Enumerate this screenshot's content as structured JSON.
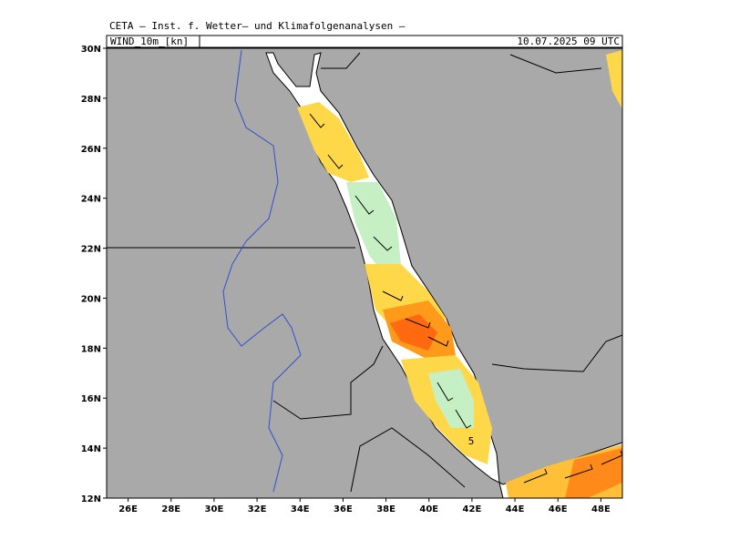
{
  "header": {
    "title": "CETA – Inst. f. Wetter– und Klimafolgenanalysen –",
    "variable": "WIND_10m_[kn]",
    "time": "10.07.2025 09 UTC"
  },
  "map": {
    "lon_range": [
      25,
      49
    ],
    "lat_range": [
      12,
      30
    ],
    "lon_ticks": [
      {
        "value": 26,
        "label": "26E"
      },
      {
        "value": 28,
        "label": "28E"
      },
      {
        "value": 30,
        "label": "30E"
      },
      {
        "value": 32,
        "label": "32E"
      },
      {
        "value": 34,
        "label": "34E"
      },
      {
        "value": 36,
        "label": "36E"
      },
      {
        "value": 38,
        "label": "38E"
      },
      {
        "value": 40,
        "label": "40E"
      },
      {
        "value": 42,
        "label": "42E"
      },
      {
        "value": 44,
        "label": "44E"
      },
      {
        "value": 46,
        "label": "46E"
      },
      {
        "value": 48,
        "label": "48E"
      }
    ],
    "lat_ticks": [
      {
        "value": 12,
        "label": "12N"
      },
      {
        "value": 14,
        "label": "14N"
      },
      {
        "value": 16,
        "label": "16N"
      },
      {
        "value": 18,
        "label": "18N"
      },
      {
        "value": 20,
        "label": "20N"
      },
      {
        "value": 22,
        "label": "22N"
      },
      {
        "value": 24,
        "label": "24N"
      },
      {
        "value": 26,
        "label": "26N"
      },
      {
        "value": 28,
        "label": "28N"
      },
      {
        "value": 30,
        "label": "30N"
      }
    ],
    "contour_label": "5"
  }
}
